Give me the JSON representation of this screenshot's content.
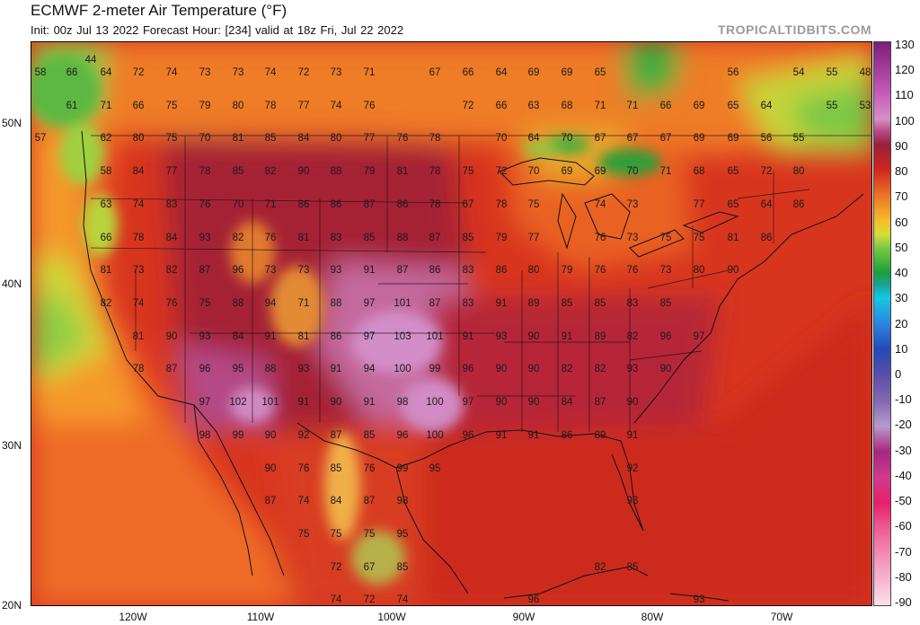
{
  "header": {
    "title": "ECMWF 2-meter Air Temperature (°F)",
    "subtitle": "Init: 00z Jul 13 2022   Forecast Hour: [234]   valid at 18z Fri, Jul 22 2022",
    "brand": "TROPICALTIDBITS.COM"
  },
  "axes": {
    "lat_labels": [
      "50N",
      "40N",
      "30N",
      "20N"
    ],
    "lon_labels": [
      "120W",
      "110W",
      "100W",
      "90W",
      "80W",
      "70W"
    ]
  },
  "colorbar": {
    "labels": [
      "130",
      "120",
      "110",
      "100",
      "90",
      "80",
      "70",
      "60",
      "50",
      "40",
      "30",
      "20",
      "10",
      "0",
      "-10",
      "-20",
      "-30",
      "-40",
      "-50",
      "-60",
      "-70",
      "-80",
      "-90"
    ],
    "stops": [
      {
        "v": 130,
        "c": "#7b1e7a"
      },
      {
        "v": 110,
        "c": "#c75bb8"
      },
      {
        "v": 100,
        "c": "#d68fc7"
      },
      {
        "v": 95,
        "c": "#b34a86"
      },
      {
        "v": 90,
        "c": "#9a1f3c"
      },
      {
        "v": 80,
        "c": "#d1271d"
      },
      {
        "v": 70,
        "c": "#ee7424"
      },
      {
        "v": 60,
        "c": "#f4c02a"
      },
      {
        "v": 55,
        "c": "#d8dd36"
      },
      {
        "v": 50,
        "c": "#7ecb45"
      },
      {
        "v": 40,
        "c": "#1aa03a"
      },
      {
        "v": 35,
        "c": "#18a59a"
      },
      {
        "v": 30,
        "c": "#17c7e6"
      },
      {
        "v": 20,
        "c": "#2b84e0"
      },
      {
        "v": 10,
        "c": "#2449b9"
      },
      {
        "v": 0,
        "c": "#5a4fa8"
      },
      {
        "v": -10,
        "c": "#8168b2"
      },
      {
        "v": -20,
        "c": "#b79acb"
      },
      {
        "v": -30,
        "c": "#a9267f"
      },
      {
        "v": -40,
        "c": "#d03b8d"
      },
      {
        "v": -50,
        "c": "#e61f6d"
      },
      {
        "v": -60,
        "c": "#ee5c93"
      },
      {
        "v": -70,
        "c": "#f38bb4"
      },
      {
        "v": -80,
        "c": "#f7b5cf"
      },
      {
        "v": -90,
        "c": "#fbe1ec"
      }
    ]
  },
  "temperature_points": [
    [
      44,
      65
    ],
    [
      58,
      79
    ],
    [
      66,
      79
    ],
    [
      64,
      79
    ],
    [
      72,
      79
    ],
    [
      74,
      79
    ],
    [
      73,
      79
    ],
    [
      73,
      79
    ],
    [
      74,
      79
    ],
    [
      72,
      79
    ],
    [
      73,
      79
    ],
    [
      71,
      79
    ],
    [
      67,
      79
    ],
    [
      66,
      79
    ],
    [
      64,
      79
    ],
    [
      69,
      79
    ],
    [
      69,
      79
    ],
    [
      65,
      79
    ],
    [
      56,
      79
    ],
    [
      54,
      79
    ],
    [
      55,
      79
    ],
    [
      48,
      79
    ],
    [
      61,
      116
    ],
    [
      71,
      116
    ],
    [
      66,
      116
    ],
    [
      75,
      116
    ],
    [
      79,
      116
    ],
    [
      80,
      116
    ],
    [
      78,
      116
    ],
    [
      77,
      116
    ],
    [
      74,
      116
    ],
    [
      76,
      116
    ],
    [
      72,
      116
    ],
    [
      66,
      116
    ],
    [
      63,
      116
    ],
    [
      68,
      116
    ],
    [
      71,
      116
    ],
    [
      71,
      116
    ],
    [
      66,
      116
    ],
    [
      69,
      116
    ],
    [
      65,
      116
    ],
    [
      64,
      116
    ],
    [
      55,
      116
    ],
    [
      53,
      116
    ],
    [
      57,
      152
    ],
    [
      62,
      152
    ],
    [
      80,
      152
    ],
    [
      75,
      152
    ],
    [
      70,
      152
    ],
    [
      81,
      152
    ],
    [
      85,
      152
    ],
    [
      84,
      152
    ],
    [
      80,
      152
    ],
    [
      77,
      152
    ],
    [
      76,
      152
    ],
    [
      78,
      152
    ],
    [
      70,
      152
    ],
    [
      64,
      152
    ],
    [
      70,
      152
    ],
    [
      67,
      152
    ],
    [
      67,
      152
    ],
    [
      67,
      152
    ],
    [
      69,
      152
    ],
    [
      69,
      152
    ],
    [
      56,
      152
    ],
    [
      55,
      152
    ],
    [
      58,
      189
    ],
    [
      84,
      189
    ],
    [
      77,
      189
    ],
    [
      78,
      189
    ],
    [
      85,
      189
    ],
    [
      82,
      189
    ],
    [
      90,
      189
    ],
    [
      88,
      189
    ],
    [
      79,
      189
    ],
    [
      81,
      189
    ],
    [
      78,
      189
    ],
    [
      75,
      189
    ],
    [
      72,
      189
    ],
    [
      70,
      189
    ],
    [
      69,
      189
    ],
    [
      69,
      189
    ],
    [
      70,
      189
    ],
    [
      71,
      189
    ],
    [
      68,
      189
    ],
    [
      65,
      189
    ],
    [
      72,
      189
    ],
    [
      80,
      189
    ],
    [
      63,
      226
    ],
    [
      74,
      226
    ],
    [
      83,
      226
    ],
    [
      76,
      226
    ],
    [
      70,
      226
    ],
    [
      71,
      226
    ],
    [
      86,
      226
    ],
    [
      86,
      226
    ],
    [
      87,
      226
    ],
    [
      86,
      226
    ],
    [
      78,
      226
    ],
    [
      67,
      226
    ],
    [
      78,
      226
    ],
    [
      75,
      226
    ],
    [
      74,
      226
    ],
    [
      73,
      226
    ],
    [
      77,
      226
    ],
    [
      65,
      226
    ],
    [
      64,
      226
    ],
    [
      86,
      226
    ],
    [
      66,
      263
    ],
    [
      78,
      263
    ],
    [
      84,
      263
    ],
    [
      93,
      263
    ],
    [
      82,
      263
    ],
    [
      76,
      263
    ],
    [
      81,
      263
    ],
    [
      83,
      263
    ],
    [
      85,
      263
    ],
    [
      88,
      263
    ],
    [
      87,
      263
    ],
    [
      85,
      263
    ],
    [
      79,
      263
    ],
    [
      77,
      263
    ],
    [
      76,
      263
    ],
    [
      73,
      263
    ],
    [
      75,
      263
    ],
    [
      75,
      263
    ],
    [
      81,
      263
    ],
    [
      86,
      263
    ],
    [
      81,
      299
    ],
    [
      73,
      299
    ],
    [
      82,
      299
    ],
    [
      87,
      299
    ],
    [
      96,
      299
    ],
    [
      73,
      299
    ],
    [
      73,
      299
    ],
    [
      93,
      299
    ],
    [
      91,
      299
    ],
    [
      87,
      299
    ],
    [
      86,
      299
    ],
    [
      83,
      299
    ],
    [
      86,
      299
    ],
    [
      80,
      299
    ],
    [
      79,
      299
    ],
    [
      76,
      299
    ],
    [
      76,
      299
    ],
    [
      73,
      299
    ],
    [
      80,
      299
    ],
    [
      90,
      299
    ],
    [
      82,
      336
    ],
    [
      74,
      336
    ],
    [
      76,
      336
    ],
    [
      75,
      336
    ],
    [
      88,
      336
    ],
    [
      94,
      336
    ],
    [
      71,
      336
    ],
    [
      88,
      336
    ],
    [
      97,
      336
    ],
    [
      101,
      336
    ],
    [
      87,
      336
    ],
    [
      83,
      336
    ],
    [
      91,
      336
    ],
    [
      89,
      336
    ],
    [
      85,
      336
    ],
    [
      85,
      336
    ],
    [
      83,
      336
    ],
    [
      85,
      336
    ],
    [
      81,
      373
    ],
    [
      90,
      373
    ],
    [
      93,
      373
    ],
    [
      84,
      373
    ],
    [
      91,
      373
    ],
    [
      81,
      373
    ],
    [
      86,
      373
    ],
    [
      97,
      373
    ],
    [
      103,
      373
    ],
    [
      101,
      373
    ],
    [
      91,
      373
    ],
    [
      93,
      373
    ],
    [
      90,
      373
    ],
    [
      91,
      373
    ],
    [
      89,
      373
    ],
    [
      82,
      373
    ],
    [
      96,
      373
    ],
    [
      97,
      373
    ],
    [
      78,
      409
    ],
    [
      87,
      409
    ],
    [
      96,
      409
    ],
    [
      95,
      409
    ],
    [
      88,
      409
    ],
    [
      93,
      409
    ],
    [
      91,
      409
    ],
    [
      94,
      409
    ],
    [
      100,
      409
    ],
    [
      99,
      409
    ],
    [
      96,
      409
    ],
    [
      90,
      409
    ],
    [
      90,
      409
    ],
    [
      82,
      409
    ],
    [
      82,
      409
    ],
    [
      93,
      409
    ],
    [
      90,
      409
    ],
    [
      97,
      446
    ],
    [
      102,
      446
    ],
    [
      101,
      446
    ],
    [
      91,
      446
    ],
    [
      90,
      446
    ],
    [
      91,
      446
    ],
    [
      98,
      446
    ],
    [
      100,
      446
    ],
    [
      97,
      446
    ],
    [
      90,
      446
    ],
    [
      90,
      446
    ],
    [
      84,
      446
    ],
    [
      87,
      446
    ],
    [
      90,
      446
    ],
    [
      98,
      483
    ],
    [
      99,
      483
    ],
    [
      90,
      483
    ],
    [
      92,
      483
    ],
    [
      87,
      483
    ],
    [
      85,
      483
    ],
    [
      96,
      483
    ],
    [
      100,
      483
    ],
    [
      96,
      483
    ],
    [
      91,
      483
    ],
    [
      91,
      483
    ],
    [
      86,
      483
    ],
    [
      89,
      483
    ],
    [
      91,
      483
    ],
    [
      90,
      520
    ],
    [
      76,
      520
    ],
    [
      85,
      520
    ],
    [
      76,
      520
    ],
    [
      99,
      520
    ],
    [
      95,
      520
    ],
    [
      92,
      520
    ],
    [
      87,
      556
    ],
    [
      74,
      556
    ],
    [
      84,
      556
    ],
    [
      87,
      556
    ],
    [
      98,
      556
    ],
    [
      93,
      556
    ],
    [
      75,
      593
    ],
    [
      75,
      593
    ],
    [
      75,
      593
    ],
    [
      95,
      593
    ],
    [
      72,
      630
    ],
    [
      67,
      630
    ],
    [
      85,
      630
    ],
    [
      82,
      630
    ],
    [
      85,
      630
    ],
    [
      74,
      666
    ],
    [
      72,
      666
    ],
    [
      74,
      666
    ],
    [
      96,
      666
    ],
    [
      93,
      666
    ]
  ],
  "temperature_values": [
    "44",
    "58",
    "66",
    "64",
    "72",
    "74",
    "73",
    "73",
    "74",
    "72",
    "73",
    "71",
    "67",
    "66",
    "64",
    "69",
    "69",
    "65",
    "56",
    "54",
    "55",
    "48",
    "61",
    "71",
    "66",
    "75",
    "79",
    "80",
    "78",
    "77",
    "74",
    "76",
    "72",
    "66",
    "63",
    "68",
    "71",
    "71",
    "66",
    "69",
    "65",
    "64",
    "55",
    "53",
    "57",
    "62",
    "80",
    "75",
    "70",
    "81",
    "85",
    "84",
    "80",
    "77",
    "76",
    "78",
    "70",
    "64",
    "70",
    "67",
    "67",
    "67",
    "69",
    "69",
    "56",
    "55",
    "58",
    "84",
    "77",
    "78",
    "85",
    "82",
    "90",
    "88",
    "79",
    "81",
    "78",
    "75",
    "72",
    "70",
    "69",
    "69",
    "70",
    "71",
    "68",
    "65",
    "72",
    "80",
    "63",
    "74",
    "83",
    "76",
    "70",
    "71",
    "86",
    "86",
    "87",
    "86",
    "78",
    "67",
    "78",
    "75",
    "74",
    "73",
    "77",
    "65",
    "64",
    "86",
    "66",
    "78",
    "84",
    "93",
    "82",
    "76",
    "81",
    "83",
    "85",
    "88",
    "87",
    "85",
    "79",
    "77",
    "76",
    "73",
    "75",
    "75",
    "81",
    "86",
    "81",
    "73",
    "82",
    "87",
    "96",
    "73",
    "73",
    "93",
    "91",
    "87",
    "86",
    "83",
    "86",
    "80",
    "79",
    "76",
    "76",
    "73",
    "80",
    "90",
    "82",
    "74",
    "76",
    "75",
    "88",
    "94",
    "71",
    "88",
    "97",
    "101",
    "87",
    "83",
    "91",
    "89",
    "85",
    "85",
    "83",
    "85",
    "81",
    "90",
    "93",
    "84",
    "91",
    "81",
    "86",
    "97",
    "103",
    "101",
    "91",
    "93",
    "90",
    "91",
    "89",
    "82",
    "96",
    "97",
    "78",
    "87",
    "96",
    "95",
    "88",
    "93",
    "91",
    "94",
    "100",
    "99",
    "96",
    "90",
    "90",
    "82",
    "82",
    "93",
    "90",
    "97",
    "102",
    "101",
    "91",
    "90",
    "91",
    "98",
    "100",
    "97",
    "90",
    "90",
    "84",
    "87",
    "90",
    "98",
    "99",
    "90",
    "92",
    "87",
    "85",
    "96",
    "100",
    "96",
    "91",
    "91",
    "86",
    "89",
    "91",
    "90",
    "76",
    "85",
    "76",
    "99",
    "95",
    "92",
    "87",
    "74",
    "84",
    "87",
    "98",
    "93",
    "75",
    "75",
    "75",
    "95",
    "72",
    "67",
    "85",
    "82",
    "85",
    "74",
    "72",
    "74",
    "96",
    "93"
  ]
}
